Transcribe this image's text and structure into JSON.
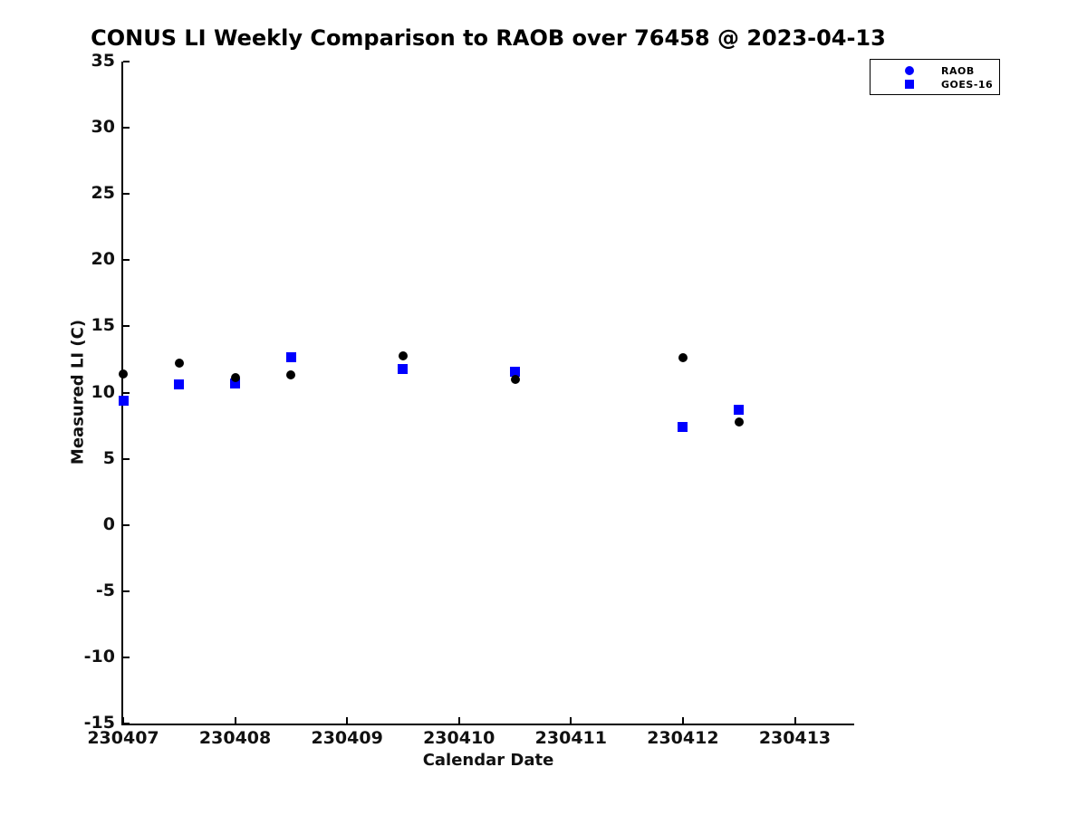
{
  "title": "CONUS LI Weekly Comparison to RAOB over 76458 @ 2023-04-13",
  "chart_data": {
    "type": "scatter",
    "title": "CONUS LI Weekly Comparison to RAOB over 76458 @ 2023-04-13",
    "xlabel": "Calendar Date",
    "ylabel": "Measured LI (C)",
    "xlim": [
      230407,
      230413.53
    ],
    "ylim": [
      -15,
      35
    ],
    "xticks": [
      230407,
      230408,
      230409,
      230410,
      230411,
      230412,
      230413
    ],
    "xtick_labels": [
      "230407",
      "230408",
      "230409",
      "230410",
      "230411",
      "230412",
      "230413"
    ],
    "yticks": [
      35,
      30,
      25,
      20,
      15,
      10,
      5,
      0,
      -5,
      -10,
      -15
    ],
    "ytick_labels": [
      "35",
      "30",
      "25",
      "20",
      "15",
      "10",
      "5",
      "0",
      "-5",
      "-10",
      "-15"
    ],
    "grid": false,
    "axis_color": "#000000",
    "background_color": "#ffffff",
    "legend": {
      "position": "top-right",
      "border_color": "#000000"
    },
    "series": [
      {
        "name": "RAOB",
        "marker": "circle",
        "plot_color": "#000000",
        "legend_color": "#0000ff",
        "x": [
          230407.0,
          230407.5,
          230408.0,
          230408.5,
          230409.5,
          230410.5,
          230412.0,
          230412.5
        ],
        "y": [
          11.4,
          12.2,
          11.1,
          11.3,
          12.8,
          11.0,
          12.6,
          7.8
        ]
      },
      {
        "name": "GOES-16",
        "marker": "square",
        "plot_color": "#0000ff",
        "legend_color": "#0000ff",
        "x": [
          230407.0,
          230407.5,
          230408.0,
          230408.5,
          230409.5,
          230410.5,
          230412.0,
          230412.5
        ],
        "y": [
          9.4,
          10.6,
          10.7,
          12.7,
          11.8,
          11.6,
          7.4,
          8.7
        ]
      }
    ]
  }
}
